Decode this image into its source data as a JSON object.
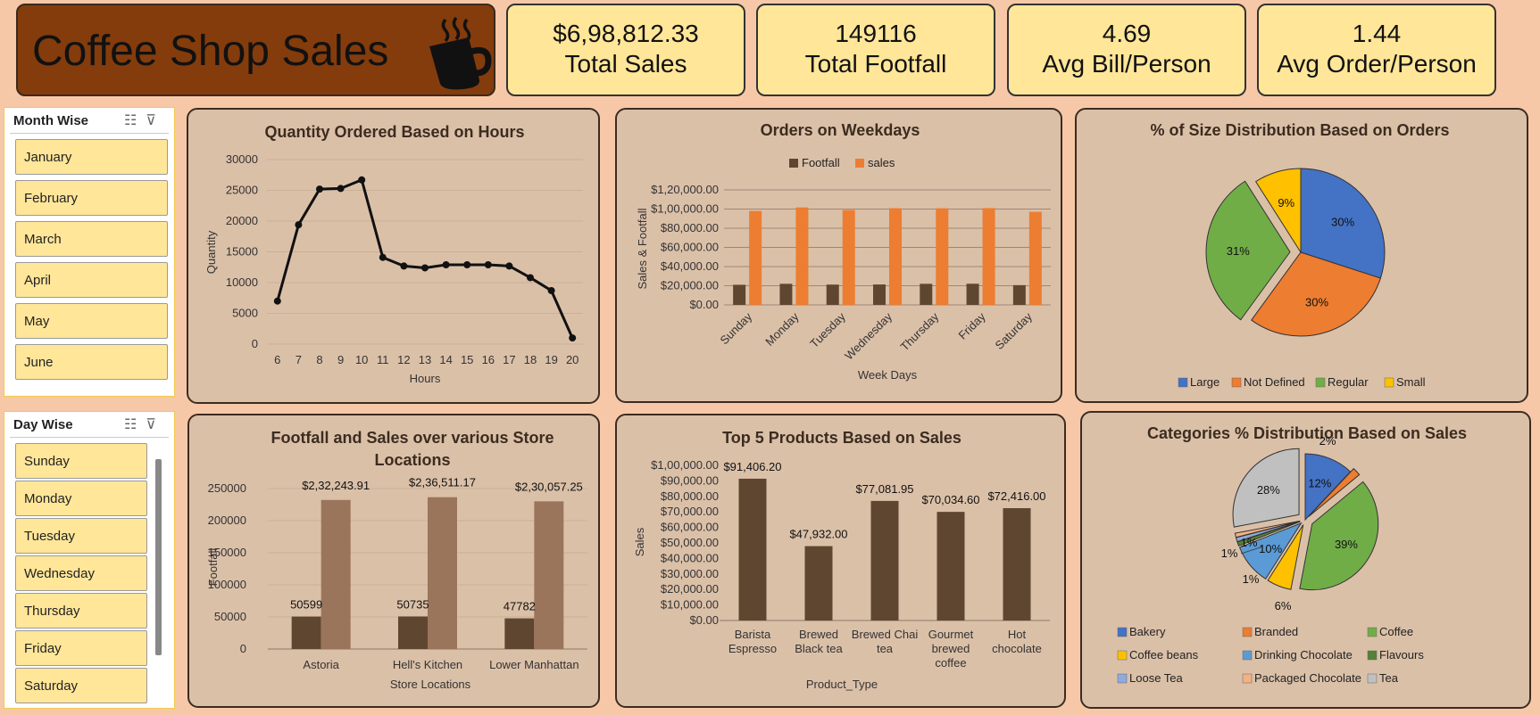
{
  "header": {
    "title": "Coffee Shop Sales",
    "icon": "coffee-cup-icon"
  },
  "kpis": [
    {
      "value": "$6,98,812.33",
      "label": "Total Sales"
    },
    {
      "value": "149116",
      "label": "Total Footfall"
    },
    {
      "value": "4.69",
      "label": "Avg Bill/Person"
    },
    {
      "value": "1.44",
      "label": "Avg Order/Person"
    }
  ],
  "slicers": {
    "month": {
      "title": "Month Wise",
      "items": [
        "January",
        "February",
        "March",
        "April",
        "May",
        "June"
      ]
    },
    "day": {
      "title": "Day Wise",
      "items": [
        "Sunday",
        "Monday",
        "Tuesday",
        "Wednesday",
        "Thursday",
        "Friday",
        "Saturday"
      ]
    }
  },
  "colors": {
    "dark_brown": "#5f4630",
    "light_brown": "#9a755b",
    "orange": "#ed7d31",
    "blue": "#4472c4",
    "green": "#70ad47",
    "yellow": "#ffc000",
    "grey": "#c0c0c0"
  },
  "chart_data": [
    {
      "id": "hours",
      "type": "line",
      "title": "Quantity Ordered Based on Hours",
      "xlabel": "Hours",
      "ylabel": "Quantity",
      "ylim": [
        0,
        30000
      ],
      "yticks": [
        "0",
        "5000",
        "10000",
        "15000",
        "20000",
        "25000",
        "30000"
      ],
      "x": [
        "6",
        "7",
        "8",
        "9",
        "10",
        "11",
        "12",
        "13",
        "14",
        "15",
        "16",
        "17",
        "18",
        "19",
        "20"
      ],
      "values": [
        7000,
        19400,
        25200,
        25300,
        26700,
        14100,
        12700,
        12400,
        12900,
        12900,
        12900,
        12700,
        10800,
        8700,
        1000
      ]
    },
    {
      "id": "weekdays",
      "type": "bar",
      "title": "Orders on Weekdays",
      "xlabel": "Week Days",
      "ylabel": "Sales & Footfall",
      "ylim": [
        0,
        120000
      ],
      "yticks": [
        "$0.00",
        "$20,000.00",
        "$40,000.00",
        "$60,000.00",
        "$80,000.00",
        "$1,00,000.00",
        "$1,20,000.00"
      ],
      "legend": "top",
      "categories": [
        "Sunday",
        "Monday",
        "Tuesday",
        "Wednesday",
        "Thursday",
        "Friday",
        "Saturday"
      ],
      "series": [
        {
          "name": "Footfall",
          "values": [
            21000,
            22000,
            21200,
            21300,
            22000,
            22100,
            20600
          ]
        },
        {
          "name": "sales",
          "values": [
            98000,
            101700,
            99000,
            100900,
            100800,
            101000,
            97100
          ]
        }
      ]
    },
    {
      "id": "size",
      "type": "pie",
      "title": "% of Size Distribution Based on Orders",
      "legend": "bottom",
      "labels": [
        "Large",
        "Not Defined",
        "Regular",
        "Small"
      ],
      "values": [
        30,
        30,
        31,
        9
      ],
      "value_labels": [
        "30%",
        "30%",
        "31%",
        "9%"
      ]
    },
    {
      "id": "stores",
      "type": "bar",
      "title": "Footfall and Sales over various Store Locations",
      "title_lines": [
        "Footfall and Sales over various Store",
        "Locations"
      ],
      "xlabel": "Store Locations",
      "ylabel": "Footfall",
      "ylim": [
        0,
        250000
      ],
      "yticks": [
        "0",
        "50000",
        "100000",
        "150000",
        "200000",
        "250000"
      ],
      "categories": [
        "Astoria",
        "Hell's Kitchen",
        "Lower Manhattan"
      ],
      "series": [
        {
          "values": [
            50599,
            50735,
            47782
          ],
          "labels": [
            "50599",
            "50735",
            "47782"
          ]
        },
        {
          "values": [
            232243.91,
            236511.17,
            230057.25
          ],
          "labels": [
            "$2,32,243.91",
            "$2,36,511.17",
            "$2,30,057.25"
          ]
        }
      ]
    },
    {
      "id": "products",
      "type": "bar",
      "title": "Top 5 Products Based on Sales",
      "xlabel": "Product_Type",
      "ylabel": "Sales",
      "ylim": [
        0,
        100000
      ],
      "yticks": [
        "$0.00",
        "$10,000.00",
        "$20,000.00",
        "$30,000.00",
        "$40,000.00",
        "$50,000.00",
        "$60,000.00",
        "$70,000.00",
        "$80,000.00",
        "$90,000.00",
        "$1,00,000.00"
      ],
      "categories": [
        [
          "Barista",
          "Espresso"
        ],
        [
          "Brewed",
          "Black tea"
        ],
        [
          "Brewed Chai",
          "tea"
        ],
        [
          "Gourmet",
          "brewed",
          "coffee"
        ],
        [
          "Hot",
          "chocolate"
        ]
      ],
      "values": [
        91406.2,
        47932,
        77081.95,
        70034.6,
        72416
      ],
      "value_labels": [
        "$91,406.20",
        "$47,932.00",
        "$77,081.95",
        "$70,034.60",
        "$72,416.00"
      ]
    },
    {
      "id": "categories",
      "type": "pie",
      "title": "Categories % Distribution Based on Sales",
      "legend": "bottom",
      "labels": [
        "Bakery",
        "Branded",
        "Coffee",
        "Coffee beans",
        "Drinking Chocolate",
        "Flavours",
        "Loose Tea",
        "Packaged Chocolate",
        "Tea"
      ],
      "values": [
        12,
        2,
        39,
        6,
        10,
        1,
        1,
        1,
        28
      ],
      "value_labels": [
        "12%",
        "2%",
        "39%",
        "6%",
        "10%",
        "1%",
        "1%",
        "1%",
        "28%"
      ]
    }
  ]
}
